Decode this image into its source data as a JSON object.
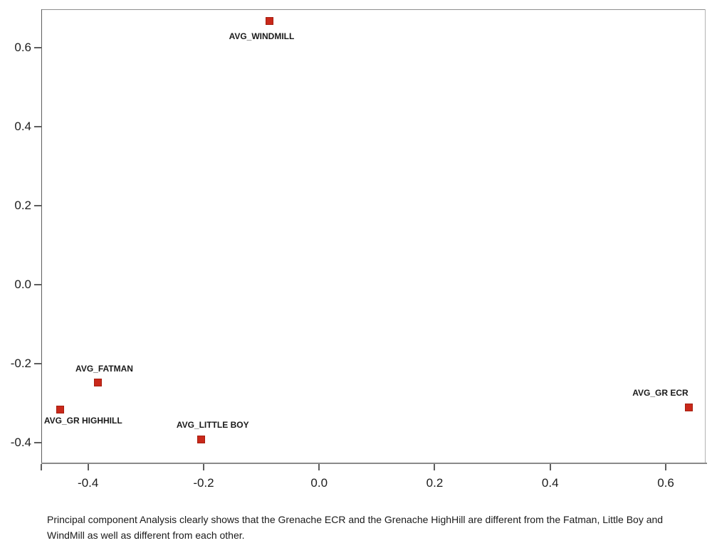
{
  "figure": {
    "caption": "Principal component Analysis clearly shows that the Grenache ECR and the Grenache HighHill are different from the Fatman, Little Boy and WindMill as well as different from each other."
  },
  "chart_data": {
    "type": "scatter",
    "title": "",
    "xlabel": "",
    "ylabel": "",
    "grid": false,
    "legend": "none",
    "xlim": [
      -0.481,
      0.669
    ],
    "ylim": [
      -0.454,
      0.697
    ],
    "x_ticks": [
      {
        "value": -0.4,
        "label": "-0.4"
      },
      {
        "value": -0.2,
        "label": "-0.2"
      },
      {
        "value": 0.0,
        "label": "0.0"
      },
      {
        "value": 0.2,
        "label": "0.2"
      },
      {
        "value": 0.4,
        "label": "0.4"
      },
      {
        "value": 0.6,
        "label": "0.6"
      }
    ],
    "x_edge_tick_value": -0.481,
    "y_ticks": [
      {
        "value": 0.6,
        "label": "0.6"
      },
      {
        "value": 0.4,
        "label": "0.4"
      },
      {
        "value": 0.2,
        "label": "0.2"
      },
      {
        "value": 0.0,
        "label": "0.0"
      },
      {
        "value": -0.2,
        "label": "-0.2"
      },
      {
        "value": -0.4,
        "label": "-0.4"
      }
    ],
    "marker": {
      "shape": "square",
      "size": 11,
      "fill_color": "#c9281a",
      "edge_color": "#a51e0f"
    },
    "points": [
      {
        "label": "AVG_WINDMILL",
        "x": -0.086,
        "y": 0.668,
        "label_offset": [
          -11,
          22
        ]
      },
      {
        "label": "AVG_FATMAN",
        "x": -0.383,
        "y": -0.248,
        "label_offset": [
          9,
          -20
        ]
      },
      {
        "label": "AVG_GR HIGHHILL",
        "x": -0.448,
        "y": -0.317,
        "label_offset": [
          32,
          15
        ]
      },
      {
        "label": "AVG_LITTLE BOY",
        "x": -0.204,
        "y": -0.391,
        "label_offset": [
          16,
          -20
        ]
      },
      {
        "label": "AVG_GR ECR",
        "x": 0.64,
        "y": -0.31,
        "label_offset": [
          -40,
          -20
        ]
      }
    ]
  }
}
